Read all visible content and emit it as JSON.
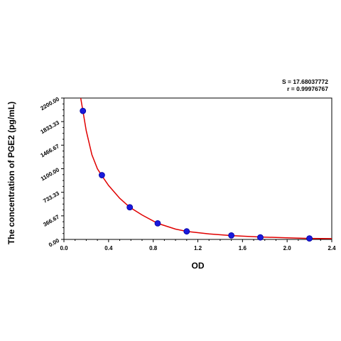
{
  "stats": {
    "s_text": "S = 17.68037772",
    "r_text": "r = 0.99976767"
  },
  "colors": {
    "curve": "#e00000",
    "marker": "#1a1adb",
    "axis": "#000000"
  },
  "chart_data": {
    "type": "scatter",
    "xlabel": "OD",
    "ylabel": "The concentration of PGE2 (pg/mL)",
    "xlim": [
      0.0,
      2.4
    ],
    "ylim": [
      0.0,
      2200.0
    ],
    "x_ticks": [
      "0.0",
      "0.4",
      "0.8",
      "1.2",
      "1.6",
      "2.0",
      "2.4"
    ],
    "y_ticks": [
      "0.00",
      "366.67",
      "733.33",
      "1100.00",
      "1466.67",
      "1833.33",
      "2200.00"
    ],
    "x_tick_values": [
      0.0,
      0.4,
      0.8,
      1.2,
      1.6,
      2.0,
      2.4
    ],
    "y_tick_values": [
      0.0,
      366.67,
      733.33,
      1100.0,
      1466.67,
      1833.33,
      2200.0
    ],
    "grid": false,
    "points": [
      {
        "x": 0.17,
        "y": 2000
      },
      {
        "x": 0.34,
        "y": 1000
      },
      {
        "x": 0.59,
        "y": 500
      },
      {
        "x": 0.84,
        "y": 250
      },
      {
        "x": 1.1,
        "y": 125
      },
      {
        "x": 1.5,
        "y": 62.5
      },
      {
        "x": 1.76,
        "y": 31.25
      },
      {
        "x": 2.2,
        "y": 15.6
      }
    ],
    "fit_curve": {
      "x": [
        0.15,
        0.17,
        0.2,
        0.25,
        0.3,
        0.34,
        0.4,
        0.5,
        0.59,
        0.7,
        0.84,
        1.0,
        1.1,
        1.3,
        1.5,
        1.76,
        2.0,
        2.2,
        2.4
      ],
      "y": [
        2280,
        2000,
        1690,
        1320,
        1100,
        990,
        840,
        640,
        500,
        380,
        250,
        160,
        125,
        85,
        60,
        38,
        24,
        16,
        12
      ]
    }
  }
}
